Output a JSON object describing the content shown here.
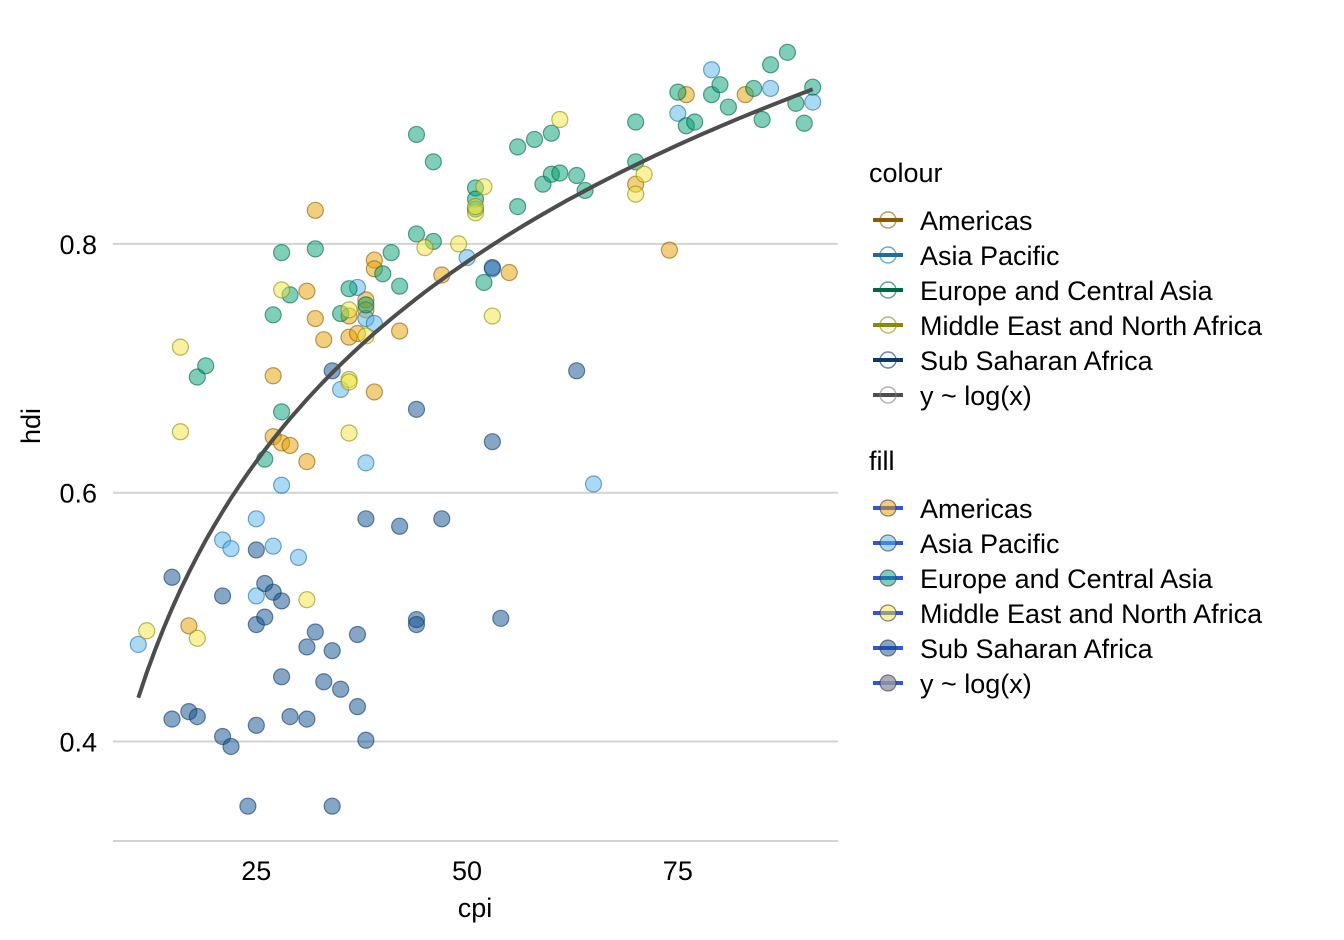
{
  "chart_data": {
    "type": "scatter",
    "xlabel": "cpi",
    "ylabel": "hdi",
    "xlim": [
      8,
      94
    ],
    "ylim": [
      0.32,
      0.98
    ],
    "xticks": [
      25,
      50,
      75
    ],
    "xtick_labels": [
      "25",
      "50",
      "75"
    ],
    "yticks": [
      0.4,
      0.6,
      0.8
    ],
    "ytick_labels": [
      "0.4",
      "0.6",
      "0.8"
    ],
    "grid": "horizontal major",
    "legend_position": "right",
    "regions": [
      "Americas",
      "Asia Pacific",
      "Europe and Central Asia",
      "Middle East and North Africa",
      "Sub Saharan Africa"
    ],
    "colors": {
      "Americas": "#E69F00",
      "Asia Pacific": "#56B4E9",
      "Europe and Central Asia": "#009E73",
      "Middle East and North Africa": "#F0E442",
      "Sub Saharan Africa": "#0E4D8C"
    },
    "stroke_colors": {
      "Americas": "#8C5A00",
      "Asia Pacific": "#1F6E9E",
      "Europe and Central Asia": "#00664A",
      "Middle East and North Africa": "#8A8A00",
      "Sub Saharan Africa": "#0A3A6A"
    },
    "series": [
      {
        "name": "Americas",
        "points": [
          [
            32,
            0.827
          ],
          [
            39,
            0.787
          ],
          [
            39,
            0.78
          ],
          [
            38,
            0.755
          ],
          [
            31,
            0.762
          ],
          [
            32,
            0.74
          ],
          [
            33,
            0.723
          ],
          [
            36,
            0.725
          ],
          [
            37,
            0.728
          ],
          [
            36,
            0.742
          ],
          [
            38,
            0.747
          ],
          [
            42,
            0.73
          ],
          [
            47,
            0.775
          ],
          [
            55,
            0.777
          ],
          [
            39,
            0.681
          ],
          [
            27,
            0.694
          ],
          [
            27,
            0.645
          ],
          [
            28,
            0.64
          ],
          [
            29,
            0.638
          ],
          [
            31,
            0.625
          ],
          [
            17,
            0.493
          ],
          [
            74,
            0.795
          ],
          [
            70,
            0.848
          ],
          [
            76,
            0.92
          ],
          [
            83,
            0.92
          ]
        ]
      },
      {
        "name": "Asia Pacific",
        "points": [
          [
            11,
            0.478
          ],
          [
            21,
            0.562
          ],
          [
            22,
            0.555
          ],
          [
            27,
            0.557
          ],
          [
            30,
            0.548
          ],
          [
            25,
            0.579
          ],
          [
            25,
            0.517
          ],
          [
            28,
            0.606
          ],
          [
            35,
            0.683
          ],
          [
            38,
            0.624
          ],
          [
            37,
            0.765
          ],
          [
            38,
            0.74
          ],
          [
            39,
            0.736
          ],
          [
            50,
            0.789
          ],
          [
            53,
            0.78
          ],
          [
            65,
            0.607
          ],
          [
            75,
            0.905
          ],
          [
            79,
            0.94
          ],
          [
            86,
            0.925
          ],
          [
            91,
            0.914
          ]
        ]
      },
      {
        "name": "Europe and Central Asia",
        "points": [
          [
            18,
            0.693
          ],
          [
            19,
            0.702
          ],
          [
            26,
            0.627
          ],
          [
            28,
            0.665
          ],
          [
            27,
            0.743
          ],
          [
            28,
            0.793
          ],
          [
            29,
            0.759
          ],
          [
            32,
            0.796
          ],
          [
            35,
            0.744
          ],
          [
            36,
            0.764
          ],
          [
            38,
            0.751
          ],
          [
            40,
            0.776
          ],
          [
            41,
            0.793
          ],
          [
            42,
            0.766
          ],
          [
            44,
            0.808
          ],
          [
            46,
            0.802
          ],
          [
            44,
            0.888
          ],
          [
            46,
            0.866
          ],
          [
            51,
            0.845
          ],
          [
            51,
            0.836
          ],
          [
            51,
            0.828
          ],
          [
            52,
            0.769
          ],
          [
            56,
            0.83
          ],
          [
            56,
            0.878
          ],
          [
            58,
            0.884
          ],
          [
            59,
            0.848
          ],
          [
            60,
            0.889
          ],
          [
            60,
            0.856
          ],
          [
            61,
            0.857
          ],
          [
            63,
            0.855
          ],
          [
            64,
            0.843
          ],
          [
            70,
            0.866
          ],
          [
            70,
            0.898
          ],
          [
            75,
            0.922
          ],
          [
            76,
            0.895
          ],
          [
            77,
            0.898
          ],
          [
            79,
            0.92
          ],
          [
            80,
            0.928
          ],
          [
            81,
            0.91
          ],
          [
            84,
            0.925
          ],
          [
            85,
            0.9
          ],
          [
            86,
            0.944
          ],
          [
            88,
            0.954
          ],
          [
            89,
            0.913
          ],
          [
            90,
            0.897
          ],
          [
            91,
            0.926
          ]
        ]
      },
      {
        "name": "Middle East and North Africa",
        "points": [
          [
            12,
            0.489
          ],
          [
            16,
            0.717
          ],
          [
            16,
            0.649
          ],
          [
            18,
            0.483
          ],
          [
            28,
            0.763
          ],
          [
            31,
            0.514
          ],
          [
            36,
            0.747
          ],
          [
            36,
            0.648
          ],
          [
            36,
            0.691
          ],
          [
            36,
            0.689
          ],
          [
            38,
            0.726
          ],
          [
            45,
            0.797
          ],
          [
            49,
            0.8
          ],
          [
            51,
            0.825
          ],
          [
            51,
            0.83
          ],
          [
            52,
            0.846
          ],
          [
            53,
            0.742
          ],
          [
            61,
            0.9
          ],
          [
            70,
            0.84
          ],
          [
            71,
            0.856
          ]
        ]
      },
      {
        "name": "Sub Saharan Africa",
        "points": [
          [
            15,
            0.532
          ],
          [
            15,
            0.418
          ],
          [
            17,
            0.424
          ],
          [
            18,
            0.42
          ],
          [
            21,
            0.517
          ],
          [
            21,
            0.404
          ],
          [
            22,
            0.396
          ],
          [
            24,
            0.348
          ],
          [
            25,
            0.554
          ],
          [
            25,
            0.494
          ],
          [
            25,
            0.413
          ],
          [
            26,
            0.527
          ],
          [
            26,
            0.5
          ],
          [
            27,
            0.52
          ],
          [
            28,
            0.513
          ],
          [
            28,
            0.452
          ],
          [
            29,
            0.42
          ],
          [
            31,
            0.476
          ],
          [
            31,
            0.418
          ],
          [
            32,
            0.488
          ],
          [
            33,
            0.448
          ],
          [
            34,
            0.698
          ],
          [
            34,
            0.473
          ],
          [
            34,
            0.348
          ],
          [
            35,
            0.442
          ],
          [
            37,
            0.486
          ],
          [
            37,
            0.428
          ],
          [
            38,
            0.579
          ],
          [
            38,
            0.401
          ],
          [
            42,
            0.573
          ],
          [
            44,
            0.667
          ],
          [
            44,
            0.498
          ],
          [
            44,
            0.494
          ],
          [
            47,
            0.579
          ],
          [
            53,
            0.641
          ],
          [
            53,
            0.781
          ],
          [
            54,
            0.499
          ],
          [
            63,
            0.698
          ]
        ]
      }
    ],
    "fit": {
      "name": "y ~ log(x)",
      "model": "y ~ log(x)",
      "a": -0.12,
      "b": 0.2315,
      "x_range": [
        11,
        91
      ],
      "color": "#4D4D4D"
    }
  },
  "legend_colour": {
    "title": "colour",
    "items": [
      "Americas",
      "Asia Pacific",
      "Europe and Central Asia",
      "Middle East and North Africa",
      "Sub Saharan Africa",
      "y ~ log(x)"
    ]
  },
  "legend_fill": {
    "title": "fill",
    "items": [
      "Americas",
      "Asia Pacific",
      "Europe and Central Asia",
      "Middle East and North Africa",
      "Sub Saharan Africa",
      "y ~ log(x)"
    ]
  }
}
